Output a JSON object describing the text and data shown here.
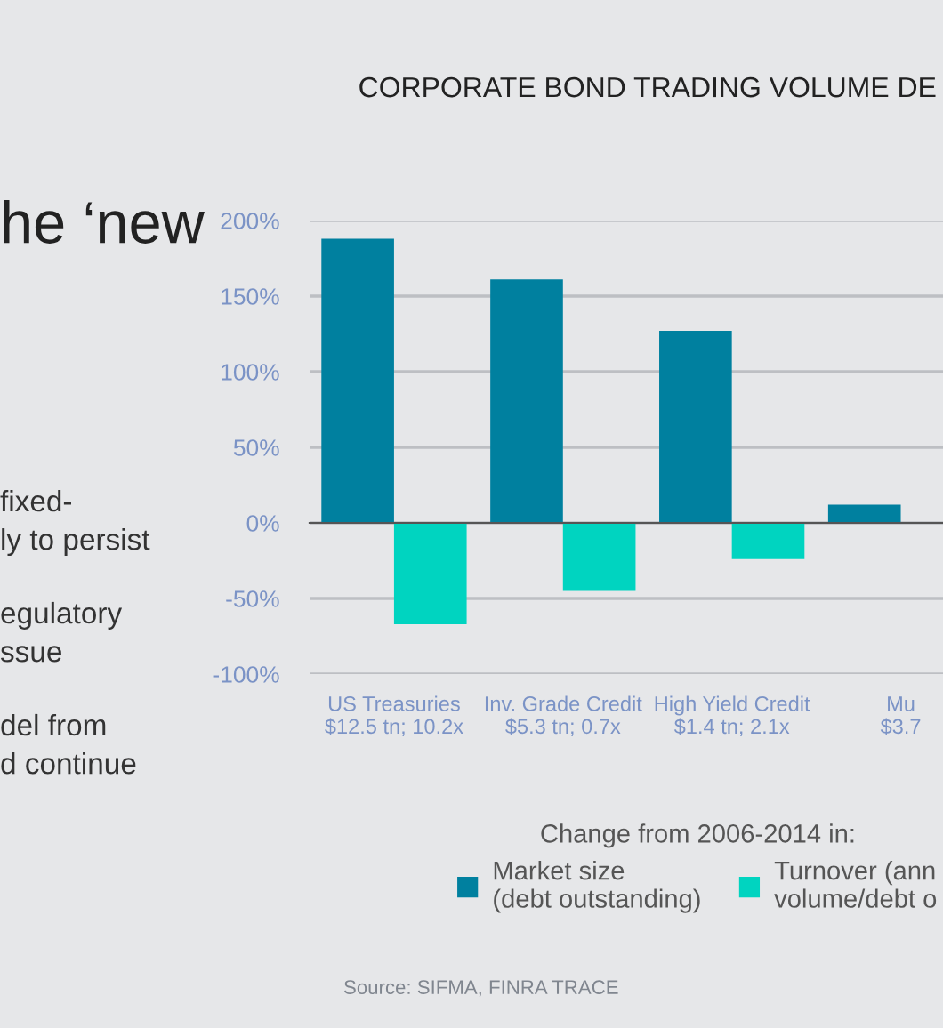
{
  "chart_data": {
    "type": "bar",
    "title": "CORPORATE BOND TRADING VOLUME DE",
    "categories": [
      "US Treasuries\n$12.5 tn; 10.2x",
      "Inv. Grade Credit\n$5.3 tn; 0.7x",
      "High Yield Credit\n$1.4 tn; 2.1x",
      "Mu\n$3.7"
    ],
    "series": [
      {
        "name": "Market size\n(debt outstanding)",
        "color": "#00809f",
        "values": [
          188,
          161,
          127,
          12
        ]
      },
      {
        "name": "Turnover (ann\nvolume/debt o",
        "color": "#00d4c0",
        "values": [
          -67,
          -45,
          -24,
          null
        ]
      }
    ],
    "ylim": [
      -100,
      200
    ],
    "yticks": [
      {
        "value": -100,
        "label": "-100%"
      },
      {
        "value": -50,
        "label": "-50%"
      },
      {
        "value": 0,
        "label": "0%"
      },
      {
        "value": 50,
        "label": "50%"
      },
      {
        "value": 100,
        "label": "100%"
      },
      {
        "value": 150,
        "label": "150%"
      },
      {
        "value": 200,
        "label": "200%"
      }
    ],
    "grid": "y",
    "legend": "bottom",
    "legend_title": "Change from 2006-2014 in:",
    "annotations": [
      "he ‘new",
      "fixed-\nly to persist",
      "egulatory\nssue",
      "del from\nd continue",
      "Source: SIFMA, FINRA TRACE"
    ]
  }
}
